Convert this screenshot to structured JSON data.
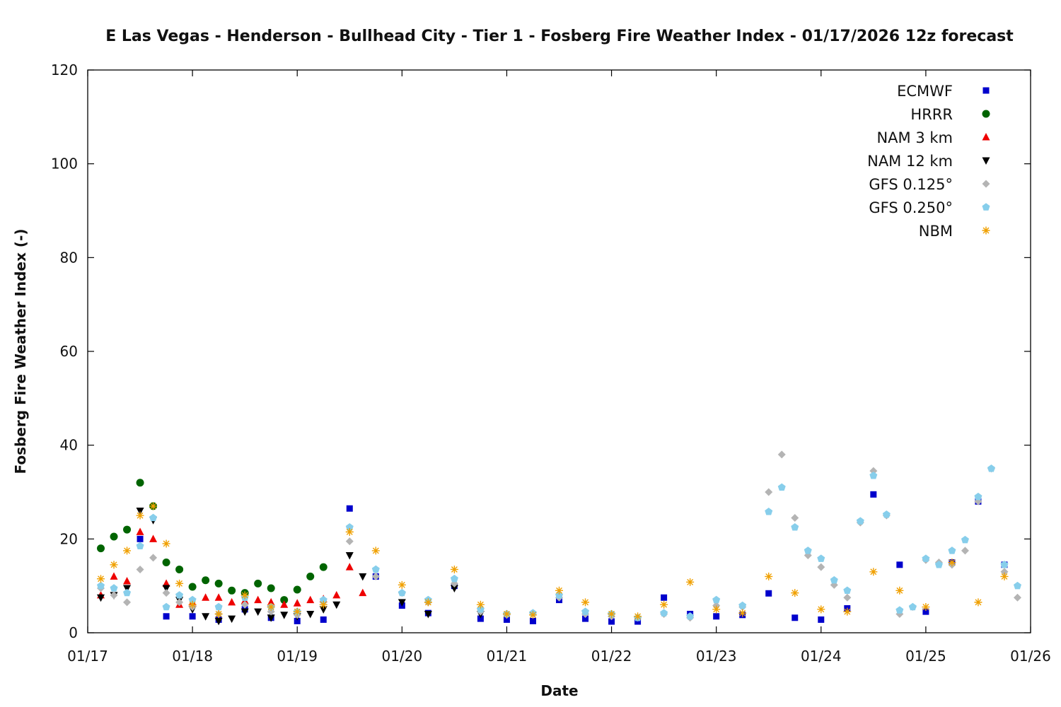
{
  "chart_data": {
    "type": "scatter",
    "title": "E Las Vegas - Henderson - Bullhead City - Tier 1 - Fosberg Fire Weather Index - 01/17/2026 12z forecast",
    "xlabel": "Date",
    "ylabel": "Fosberg Fire Weather Index (-)",
    "x_ticks": [
      "01/17",
      "01/18",
      "01/19",
      "01/20",
      "01/21",
      "01/22",
      "01/23",
      "01/24",
      "01/25",
      "01/26"
    ],
    "xlim": [
      "2026-01-17T00:00",
      "2026-01-26T00:00"
    ],
    "ylim": [
      0,
      120
    ],
    "y_ticks": [
      0,
      20,
      40,
      60,
      80,
      100,
      120
    ],
    "grid": false,
    "legend_position": "top-right",
    "series": [
      {
        "name": "ECMWF",
        "color": "#0000cc",
        "marker": "square",
        "x": [
          "2026-01-17T12:00",
          "2026-01-17T18:00",
          "2026-01-18T00:00",
          "2026-01-18T06:00",
          "2026-01-18T12:00",
          "2026-01-18T18:00",
          "2026-01-19T00:00",
          "2026-01-19T06:00",
          "2026-01-19T12:00",
          "2026-01-19T18:00",
          "2026-01-20T00:00",
          "2026-01-20T06:00",
          "2026-01-20T12:00",
          "2026-01-20T18:00",
          "2026-01-21T00:00",
          "2026-01-21T06:00",
          "2026-01-21T12:00",
          "2026-01-21T18:00",
          "2026-01-22T00:00",
          "2026-01-22T06:00",
          "2026-01-22T12:00",
          "2026-01-22T18:00",
          "2026-01-23T00:00",
          "2026-01-23T06:00",
          "2026-01-23T12:00",
          "2026-01-23T18:00",
          "2026-01-24T00:00",
          "2026-01-24T06:00",
          "2026-01-24T12:00",
          "2026-01-24T18:00",
          "2026-01-25T00:00",
          "2026-01-25T06:00",
          "2026-01-25T12:00",
          "2026-01-25T18:00"
        ],
        "y": [
          20.0,
          3.5,
          3.5,
          2.8,
          5.0,
          3.2,
          2.5,
          2.8,
          26.5,
          12.0,
          5.8,
          4.2,
          10.0,
          3.0,
          2.8,
          2.5,
          7.0,
          3.0,
          2.4,
          2.4,
          7.5,
          4.0,
          3.5,
          3.8,
          8.4,
          3.2,
          2.8,
          5.2,
          29.5,
          14.5,
          4.5,
          15.0,
          28.0,
          14.5
        ]
      },
      {
        "name": "HRRR",
        "color": "#006400",
        "marker": "circle",
        "x": [
          "2026-01-17T03:00",
          "2026-01-17T06:00",
          "2026-01-17T09:00",
          "2026-01-17T12:00",
          "2026-01-17T15:00",
          "2026-01-17T18:00",
          "2026-01-17T21:00",
          "2026-01-18T00:00",
          "2026-01-18T03:00",
          "2026-01-18T06:00",
          "2026-01-18T09:00",
          "2026-01-18T12:00",
          "2026-01-18T15:00",
          "2026-01-18T18:00",
          "2026-01-18T21:00",
          "2026-01-19T00:00",
          "2026-01-19T03:00",
          "2026-01-19T06:00"
        ],
        "y": [
          18.0,
          20.5,
          22.0,
          32.0,
          27.0,
          15.0,
          13.5,
          9.8,
          11.2,
          10.5,
          9.0,
          8.5,
          10.5,
          9.5,
          7.0,
          9.2,
          12.0,
          14.0
        ]
      },
      {
        "name": "NAM 3 km",
        "color": "#ee0000",
        "marker": "triangle-up",
        "x": [
          "2026-01-17T03:00",
          "2026-01-17T06:00",
          "2026-01-17T09:00",
          "2026-01-17T12:00",
          "2026-01-17T15:00",
          "2026-01-17T18:00",
          "2026-01-17T21:00",
          "2026-01-18T00:00",
          "2026-01-18T03:00",
          "2026-01-18T06:00",
          "2026-01-18T09:00",
          "2026-01-18T12:00",
          "2026-01-18T15:00",
          "2026-01-18T18:00",
          "2026-01-18T21:00",
          "2026-01-19T00:00",
          "2026-01-19T03:00",
          "2026-01-19T06:00",
          "2026-01-19T09:00",
          "2026-01-19T12:00",
          "2026-01-19T15:00"
        ],
        "y": [
          8.0,
          12.0,
          11.0,
          21.5,
          20.0,
          10.5,
          6.0,
          6.5,
          7.5,
          7.5,
          6.5,
          6.8,
          7.0,
          6.5,
          6.0,
          6.3,
          7.0,
          7.2,
          8.0,
          14.0,
          8.5
        ]
      },
      {
        "name": "NAM 12 km",
        "color": "#000000",
        "marker": "triangle-down",
        "x": [
          "2026-01-17T03:00",
          "2026-01-17T06:00",
          "2026-01-17T09:00",
          "2026-01-17T12:00",
          "2026-01-17T15:00",
          "2026-01-17T18:00",
          "2026-01-17T21:00",
          "2026-01-18T00:00",
          "2026-01-18T03:00",
          "2026-01-18T06:00",
          "2026-01-18T09:00",
          "2026-01-18T12:00",
          "2026-01-18T15:00",
          "2026-01-18T18:00",
          "2026-01-18T21:00",
          "2026-01-19T00:00",
          "2026-01-19T03:00",
          "2026-01-19T06:00",
          "2026-01-19T09:00",
          "2026-01-19T12:00",
          "2026-01-19T15:00",
          "2026-01-20T00:00",
          "2026-01-20T06:00",
          "2026-01-20T12:00",
          "2026-01-20T18:00"
        ],
        "y": [
          7.5,
          8.0,
          9.5,
          26.0,
          24.0,
          9.5,
          7.0,
          5.0,
          3.5,
          2.5,
          3.0,
          4.5,
          4.5,
          3.2,
          3.8,
          3.5,
          4.0,
          5.0,
          6.0,
          16.5,
          12.0,
          6.5,
          4.0,
          9.5,
          4.0
        ]
      },
      {
        "name": "GFS 0.125°",
        "color": "#b4b4b4",
        "marker": "diamond",
        "x": [
          "2026-01-17T03:00",
          "2026-01-17T06:00",
          "2026-01-17T09:00",
          "2026-01-17T12:00",
          "2026-01-17T15:00",
          "2026-01-17T18:00",
          "2026-01-17T21:00",
          "2026-01-18T00:00",
          "2026-01-18T06:00",
          "2026-01-18T12:00",
          "2026-01-18T18:00",
          "2026-01-19T00:00",
          "2026-01-19T06:00",
          "2026-01-19T12:00",
          "2026-01-19T18:00",
          "2026-01-20T00:00",
          "2026-01-20T06:00",
          "2026-01-20T12:00",
          "2026-01-20T18:00",
          "2026-01-21T00:00",
          "2026-01-21T06:00",
          "2026-01-21T12:00",
          "2026-01-21T18:00",
          "2026-01-22T00:00",
          "2026-01-22T06:00",
          "2026-01-22T12:00",
          "2026-01-22T18:00",
          "2026-01-23T00:00",
          "2026-01-23T06:00",
          "2026-01-23T12:00",
          "2026-01-23T15:00",
          "2026-01-23T18:00",
          "2026-01-23T21:00",
          "2026-01-24T00:00",
          "2026-01-24T03:00",
          "2026-01-24T06:00",
          "2026-01-24T09:00",
          "2026-01-24T12:00",
          "2026-01-24T15:00",
          "2026-01-24T18:00",
          "2026-01-24T21:00",
          "2026-01-25T00:00",
          "2026-01-25T03:00",
          "2026-01-25T06:00",
          "2026-01-25T09:00",
          "2026-01-25T12:00",
          "2026-01-25T15:00",
          "2026-01-25T18:00",
          "2026-01-25T21:00"
        ],
        "y": [
          9.5,
          8.0,
          6.5,
          13.5,
          16.0,
          8.5,
          6.5,
          5.5,
          4.0,
          6.0,
          4.5,
          3.8,
          6.5,
          19.5,
          12.0,
          8.5,
          6.5,
          10.5,
          4.5,
          3.8,
          4.2,
          7.5,
          4.0,
          3.5,
          3.2,
          4.0,
          3.2,
          5.8,
          5.5,
          30.0,
          38.0,
          24.5,
          16.5,
          14.0,
          10.2,
          7.5,
          23.5,
          34.5,
          25.0,
          4.0,
          5.5,
          15.5,
          15.0,
          14.5,
          17.5,
          28.0,
          35.0,
          13.0,
          7.5
        ]
      },
      {
        "name": "GFS 0.250°",
        "color": "#87ceeb",
        "marker": "pentagon",
        "x": [
          "2026-01-17T03:00",
          "2026-01-17T06:00",
          "2026-01-17T09:00",
          "2026-01-17T12:00",
          "2026-01-17T15:00",
          "2026-01-17T18:00",
          "2026-01-17T21:00",
          "2026-01-18T00:00",
          "2026-01-18T06:00",
          "2026-01-18T12:00",
          "2026-01-18T18:00",
          "2026-01-19T00:00",
          "2026-01-19T06:00",
          "2026-01-19T12:00",
          "2026-01-19T18:00",
          "2026-01-20T00:00",
          "2026-01-20T06:00",
          "2026-01-20T12:00",
          "2026-01-20T18:00",
          "2026-01-21T00:00",
          "2026-01-21T06:00",
          "2026-01-21T12:00",
          "2026-01-21T18:00",
          "2026-01-22T00:00",
          "2026-01-22T06:00",
          "2026-01-22T12:00",
          "2026-01-22T18:00",
          "2026-01-23T00:00",
          "2026-01-23T06:00",
          "2026-01-23T12:00",
          "2026-01-23T15:00",
          "2026-01-23T18:00",
          "2026-01-23T21:00",
          "2026-01-24T00:00",
          "2026-01-24T03:00",
          "2026-01-24T06:00",
          "2026-01-24T09:00",
          "2026-01-24T12:00",
          "2026-01-24T15:00",
          "2026-01-24T18:00",
          "2026-01-24T21:00",
          "2026-01-25T00:00",
          "2026-01-25T03:00",
          "2026-01-25T06:00",
          "2026-01-25T09:00",
          "2026-01-25T12:00",
          "2026-01-25T15:00",
          "2026-01-25T18:00",
          "2026-01-25T21:00"
        ],
        "y": [
          10.0,
          9.5,
          8.5,
          18.5,
          24.5,
          5.5,
          8.0,
          7.0,
          5.5,
          7.5,
          5.5,
          4.5,
          7.0,
          22.5,
          13.5,
          8.5,
          7.0,
          11.5,
          5.0,
          4.0,
          4.2,
          8.0,
          4.5,
          4.0,
          3.2,
          4.2,
          3.5,
          7.0,
          5.8,
          25.8,
          31.0,
          22.5,
          17.5,
          15.8,
          11.2,
          9.0,
          23.8,
          33.5,
          25.2,
          4.8,
          5.5,
          15.8,
          14.5,
          17.5,
          19.8,
          29.0,
          35.0,
          14.5,
          10.0
        ]
      },
      {
        "name": "NBM",
        "color": "#f0a000",
        "marker": "star",
        "x": [
          "2026-01-17T03:00",
          "2026-01-17T06:00",
          "2026-01-17T09:00",
          "2026-01-17T12:00",
          "2026-01-17T15:00",
          "2026-01-17T18:00",
          "2026-01-17T21:00",
          "2026-01-18T00:00",
          "2026-01-18T06:00",
          "2026-01-18T12:00",
          "2026-01-18T18:00",
          "2026-01-19T00:00",
          "2026-01-19T06:00",
          "2026-01-19T12:00",
          "2026-01-19T18:00",
          "2026-01-20T00:00",
          "2026-01-20T06:00",
          "2026-01-20T12:00",
          "2026-01-20T18:00",
          "2026-01-21T00:00",
          "2026-01-21T06:00",
          "2026-01-21T12:00",
          "2026-01-21T18:00",
          "2026-01-22T00:00",
          "2026-01-22T06:00",
          "2026-01-22T12:00",
          "2026-01-22T18:00",
          "2026-01-23T00:00",
          "2026-01-23T06:00",
          "2026-01-23T12:00",
          "2026-01-23T18:00",
          "2026-01-24T00:00",
          "2026-01-24T06:00",
          "2026-01-24T12:00",
          "2026-01-24T18:00",
          "2026-01-25T00:00",
          "2026-01-25T06:00",
          "2026-01-25T12:00",
          "2026-01-25T18:00"
        ],
        "y": [
          11.5,
          14.5,
          17.5,
          25.0,
          27.0,
          19.0,
          10.5,
          6.0,
          4.0,
          8.0,
          5.5,
          4.5,
          6.0,
          21.5,
          17.5,
          10.2,
          6.5,
          13.5,
          6.0,
          4.0,
          3.8,
          9.0,
          6.5,
          4.0,
          3.5,
          6.0,
          10.8,
          5.0,
          4.2,
          12.0,
          8.5,
          5.0,
          4.5,
          13.0,
          9.0,
          5.5,
          15.0,
          6.5,
          12.0
        ]
      }
    ]
  }
}
